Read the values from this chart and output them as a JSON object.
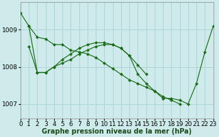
{
  "title": "Graphe pression niveau de la mer (hPa)",
  "bg_color": "#ceeaea",
  "grid_color": "#aed4d4",
  "line_color": "#1a6b1a",
  "xlim": [
    0,
    23
  ],
  "ylim": [
    1006.6,
    1009.75
  ],
  "yticks": [
    1007,
    1008,
    1009
  ],
  "series1_x": [
    0,
    1,
    2,
    3,
    4,
    5,
    6,
    7,
    8,
    9,
    10,
    11,
    12,
    13,
    14,
    15,
    16,
    17,
    18,
    19
  ],
  "series1_y": [
    1009.45,
    1009.1,
    1008.8,
    1008.75,
    1008.6,
    1008.6,
    1008.45,
    1008.4,
    1008.35,
    1008.25,
    1008.1,
    1007.95,
    1007.8,
    1007.65,
    1007.55,
    1007.45,
    1007.35,
    1007.2,
    1007.1,
    1007.0
  ],
  "series2_x": [
    1,
    2,
    3,
    4,
    5,
    6,
    7,
    8,
    9,
    10,
    11,
    12,
    13,
    14,
    15
  ],
  "series2_y": [
    1008.55,
    1007.85,
    1007.85,
    1008.0,
    1008.2,
    1008.35,
    1008.5,
    1008.6,
    1008.65,
    1008.65,
    1008.6,
    1008.5,
    1008.3,
    1008.05,
    1007.8
  ],
  "series3_x": [
    1,
    2,
    3,
    4,
    5,
    6,
    7,
    8,
    9,
    10,
    11,
    12,
    13,
    14,
    15,
    16,
    17,
    18,
    19,
    20,
    21,
    22,
    23
  ],
  "series3_y": [
    1009.1,
    1007.85,
    1007.85,
    1008.0,
    1008.1,
    1008.2,
    1008.35,
    1008.45,
    1008.55,
    1008.6,
    1008.6,
    1008.5,
    1008.3,
    1007.8,
    1007.55,
    1007.35,
    1007.15,
    1007.15,
    1007.1,
    1007.0,
    1007.55,
    1008.4,
    1009.1
  ],
  "xlabel_fontsize": 6.5,
  "ylabel_fontsize": 6.5
}
